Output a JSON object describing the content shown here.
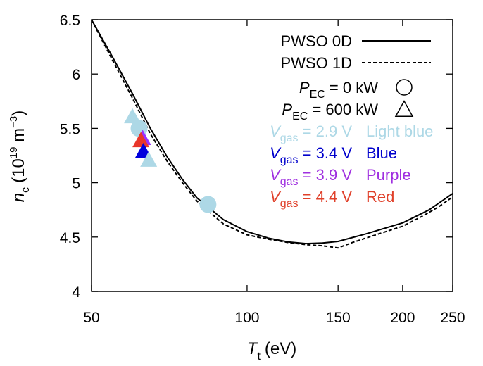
{
  "chart_data": {
    "type": "line",
    "xlabel": "T",
    "xlabel_subscript": "t",
    "xlabel_unit": "(eV)",
    "ylabel": "n",
    "ylabel_subscript": "c",
    "ylabel_unit_base": "(10",
    "ylabel_unit_exp1": "19",
    "ylabel_unit_mid": " m",
    "ylabel_unit_exp2": "−3",
    "ylabel_unit_close": ")",
    "x_scale": "log",
    "xlim": [
      50,
      250
    ],
    "ylim": [
      4,
      6.5
    ],
    "x_ticks": [
      50,
      100,
      150,
      200,
      250
    ],
    "x_tick_labels": [
      "50",
      "100",
      "150",
      "200",
      "250"
    ],
    "y_ticks": [
      4,
      4.5,
      5,
      5.5,
      6,
      6.5
    ],
    "y_tick_labels": [
      "4",
      "4.5",
      "5",
      "5.5",
      "6",
      "6.5"
    ],
    "grid": false,
    "legend_position": "top-right",
    "series": [
      {
        "name": "PWSO 0D",
        "style": "solid",
        "color": "#000000",
        "points": [
          [
            50,
            6.5
          ],
          [
            55,
            6.15
          ],
          [
            60,
            5.82
          ],
          [
            65,
            5.5
          ],
          [
            70,
            5.24
          ],
          [
            75,
            5.03
          ],
          [
            80,
            4.86
          ],
          [
            90,
            4.66
          ],
          [
            100,
            4.55
          ],
          [
            110,
            4.49
          ],
          [
            120,
            4.455
          ],
          [
            130,
            4.44
          ],
          [
            140,
            4.445
          ],
          [
            150,
            4.46
          ],
          [
            170,
            4.53
          ],
          [
            200,
            4.63
          ],
          [
            225,
            4.75
          ],
          [
            250,
            4.9
          ]
        ]
      },
      {
        "name": "PWSO 1D",
        "style": "dashed",
        "color": "#000000",
        "points": [
          [
            50,
            6.5
          ],
          [
            55,
            6.12
          ],
          [
            60,
            5.78
          ],
          [
            65,
            5.45
          ],
          [
            70,
            5.2
          ],
          [
            75,
            5.0
          ],
          [
            80,
            4.83
          ],
          [
            90,
            4.62
          ],
          [
            100,
            4.52
          ],
          [
            110,
            4.48
          ],
          [
            120,
            4.45
          ],
          [
            130,
            4.43
          ],
          [
            140,
            4.42
          ],
          [
            150,
            4.4
          ],
          [
            160,
            4.45
          ],
          [
            180,
            4.53
          ],
          [
            200,
            4.6
          ],
          [
            220,
            4.7
          ],
          [
            235,
            4.78
          ],
          [
            250,
            4.87
          ]
        ]
      }
    ],
    "markers": [
      {
        "shape": "triangle",
        "color": "#add8e6",
        "x": 60.0,
        "y": 5.6
      },
      {
        "shape": "circle",
        "color": "#add8e6",
        "x": 61.8,
        "y": 5.5
      },
      {
        "shape": "triangle",
        "color": "#9b30ff",
        "x": 62.8,
        "y": 5.4
      },
      {
        "shape": "triangle",
        "color": "#e8362a",
        "x": 62.3,
        "y": 5.38
      },
      {
        "shape": "triangle",
        "color": "#0000dd",
        "x": 63.0,
        "y": 5.28
      },
      {
        "shape": "triangle",
        "color": "#add8e6",
        "x": 64.5,
        "y": 5.2
      },
      {
        "shape": "circle",
        "color": "#add8e6",
        "x": 84.0,
        "y": 4.8
      }
    ],
    "legend": {
      "line_entries": [
        {
          "label": "PWSO 0D",
          "style": "solid"
        },
        {
          "label": "PWSO 1D",
          "style": "dashed"
        }
      ],
      "marker_entries": [
        {
          "symbol": "P",
          "subscript": "EC",
          "value": " = 0 kW",
          "shape": "circle"
        },
        {
          "symbol": "P",
          "subscript": "EC",
          "value": " = 600 kW",
          "shape": "triangle"
        }
      ],
      "color_entries": [
        {
          "symbol": "V",
          "subscript": "gas",
          "value": " = 2.9 V",
          "color_name": "Light blue",
          "color": "#add8e6"
        },
        {
          "symbol": "V",
          "subscript": "gas",
          "value": " = 3.4 V",
          "color_name": "Blue",
          "color": "#0000cc"
        },
        {
          "symbol": "V",
          "subscript": "gas",
          "value": " = 3.9 V",
          "color_name": "Purple",
          "color": "#a030e0"
        },
        {
          "symbol": "V",
          "subscript": "gas",
          "value": " = 4.4 V",
          "color_name": "Red",
          "color": "#e0402a"
        }
      ]
    }
  }
}
